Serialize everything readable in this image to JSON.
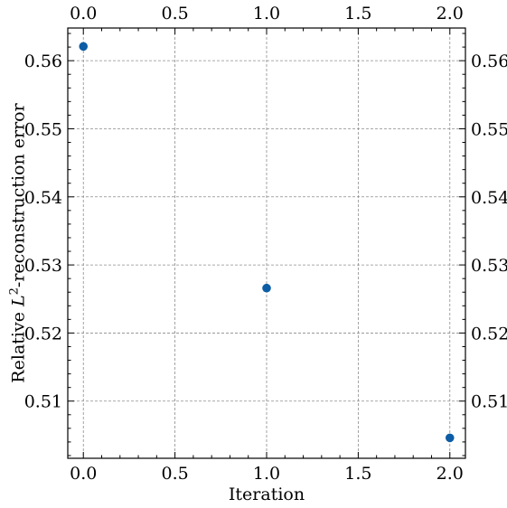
{
  "chart_data": {
    "type": "scatter",
    "title": "",
    "xlabel": "Iteration",
    "ylabel_prefix": "Relative ",
    "ylabel_var": "L",
    "ylabel_sup": "2",
    "ylabel_suffix": "-reconstruction error",
    "xlim": [
      -0.085,
      2.085
    ],
    "ylim": [
      0.5016,
      0.5648
    ],
    "xticks": [
      0.0,
      0.5,
      1.0,
      1.5,
      2.0
    ],
    "xtick_labels": [
      "0.0",
      "0.5",
      "1.0",
      "1.5",
      "2.0"
    ],
    "yticks": [
      0.51,
      0.52,
      0.53,
      0.54,
      0.55,
      0.56
    ],
    "ytick_labels": [
      "0.51",
      "0.52",
      "0.53",
      "0.54",
      "0.55",
      "0.56"
    ],
    "grid": true,
    "marker_color": "#0c5da5",
    "series": [
      {
        "x": [
          0,
          1,
          2
        ],
        "y": [
          0.5621,
          0.5266,
          0.5046
        ]
      }
    ]
  }
}
